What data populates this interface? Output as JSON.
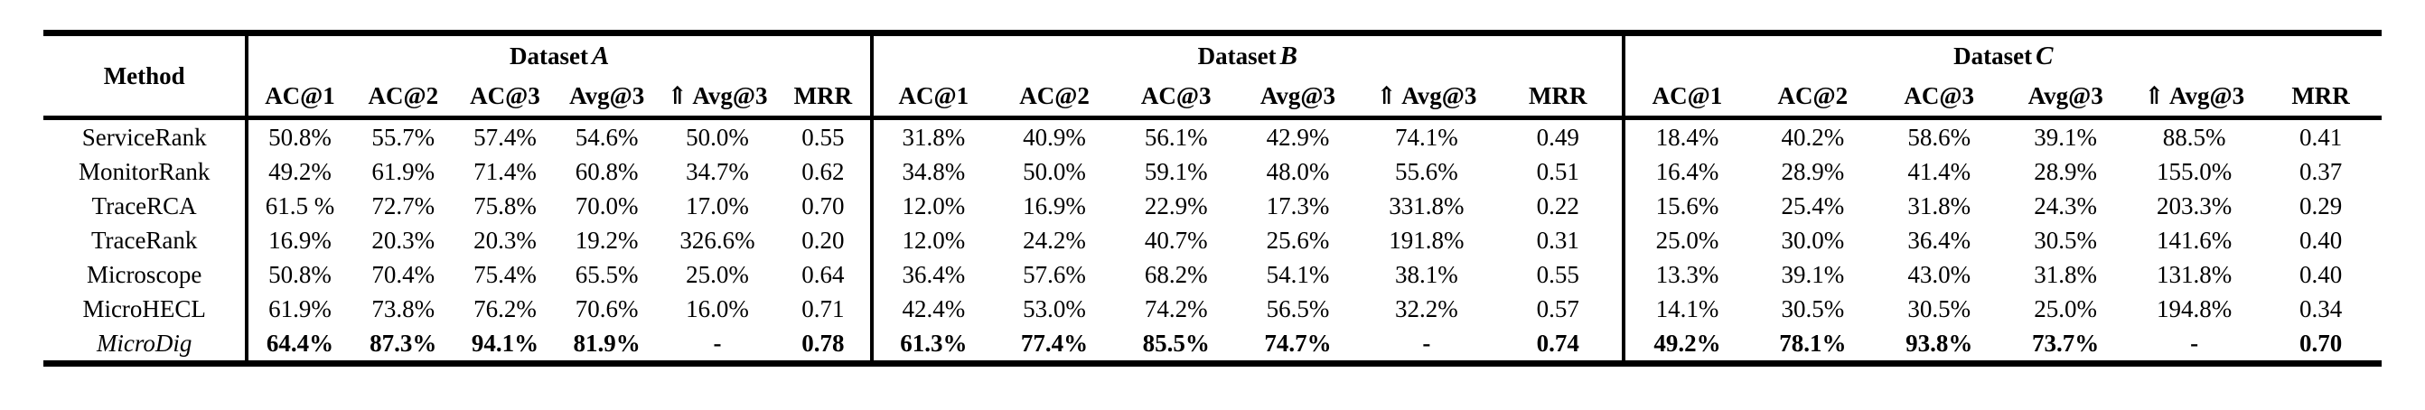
{
  "page": {
    "background": "#ffffff",
    "text_color": "#000000"
  },
  "table": {
    "method_header": "Method",
    "groups": [
      {
        "title": "Dataset",
        "letter": "A",
        "columns": [
          "AC@1",
          "AC@2",
          "AC@3",
          "Avg@3",
          "⇑ Avg@3",
          "MRR"
        ]
      },
      {
        "title": "Dataset",
        "letter": "B",
        "columns": [
          "AC@1",
          "AC@2",
          "AC@3",
          "Avg@3",
          "⇑ Avg@3",
          "MRR"
        ]
      },
      {
        "title": "Dataset",
        "letter": "C",
        "columns": [
          "AC@1",
          "AC@2",
          "AC@3",
          "Avg@3",
          "⇑ Avg@3",
          "MRR"
        ]
      }
    ],
    "rows": [
      {
        "method": "ServiceRank",
        "emphasized": false,
        "a": [
          "50.8%",
          "55.7%",
          "57.4%",
          "54.6%",
          "50.0%",
          "0.55"
        ],
        "b": [
          "31.8%",
          "40.9%",
          "56.1%",
          "42.9%",
          "74.1%",
          "0.49"
        ],
        "c": [
          "18.4%",
          "40.2%",
          "58.6%",
          "39.1%",
          "88.5%",
          "0.41"
        ]
      },
      {
        "method": "MonitorRank",
        "emphasized": false,
        "a": [
          "49.2%",
          "61.9%",
          "71.4%",
          "60.8%",
          "34.7%",
          "0.62"
        ],
        "b": [
          "34.8%",
          "50.0%",
          "59.1%",
          "48.0%",
          "55.6%",
          "0.51"
        ],
        "c": [
          "16.4%",
          "28.9%",
          "41.4%",
          "28.9%",
          "155.0%",
          "0.37"
        ]
      },
      {
        "method": "TraceRCA",
        "emphasized": false,
        "a": [
          "61.5 %",
          "72.7%",
          "75.8%",
          "70.0%",
          "17.0%",
          "0.70"
        ],
        "b": [
          "12.0%",
          "16.9%",
          "22.9%",
          "17.3%",
          "331.8%",
          "0.22"
        ],
        "c": [
          "15.6%",
          "25.4%",
          "31.8%",
          "24.3%",
          "203.3%",
          "0.29"
        ]
      },
      {
        "method": "TraceRank",
        "emphasized": false,
        "a": [
          "16.9%",
          "20.3%",
          "20.3%",
          "19.2%",
          "326.6%",
          "0.20"
        ],
        "b": [
          "12.0%",
          "24.2%",
          "40.7%",
          "25.6%",
          "191.8%",
          "0.31"
        ],
        "c": [
          "25.0%",
          "30.0%",
          "36.4%",
          "30.5%",
          "141.6%",
          "0.40"
        ]
      },
      {
        "method": "Microscope",
        "emphasized": false,
        "a": [
          "50.8%",
          "70.4%",
          "75.4%",
          "65.5%",
          "25.0%",
          "0.64"
        ],
        "b": [
          "36.4%",
          "57.6%",
          "68.2%",
          "54.1%",
          "38.1%",
          "0.55"
        ],
        "c": [
          "13.3%",
          "39.1%",
          "43.0%",
          "31.8%",
          "131.8%",
          "0.40"
        ]
      },
      {
        "method": "MicroHECL",
        "emphasized": false,
        "a": [
          "61.9%",
          "73.8%",
          "76.2%",
          "70.6%",
          "16.0%",
          "0.71"
        ],
        "b": [
          "42.4%",
          "53.0%",
          "74.2%",
          "56.5%",
          "32.2%",
          "0.57"
        ],
        "c": [
          "14.1%",
          "30.5%",
          "30.5%",
          "25.0%",
          "194.8%",
          "0.34"
        ]
      },
      {
        "method": "MicroDig",
        "emphasized": true,
        "a": [
          "64.4%",
          "87.3%",
          "94.1%",
          "81.9%",
          "-",
          "0.78"
        ],
        "b": [
          "61.3%",
          "77.4%",
          "85.5%",
          "74.7%",
          "-",
          "0.74"
        ],
        "c": [
          "49.2%",
          "78.1%",
          "93.8%",
          "73.7%",
          "-",
          "0.70"
        ]
      }
    ]
  }
}
